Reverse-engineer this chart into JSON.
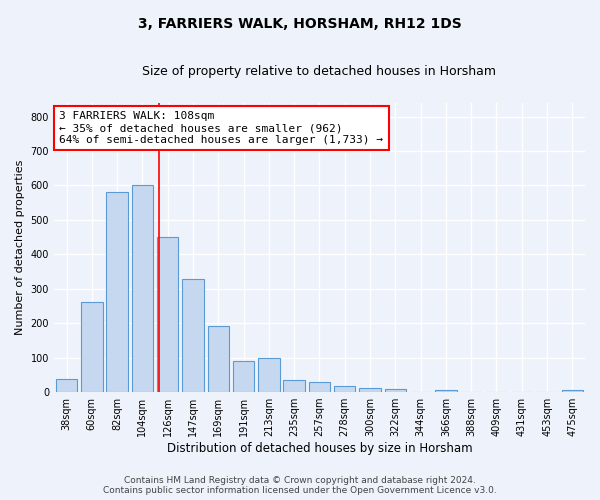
{
  "title": "3, FARRIERS WALK, HORSHAM, RH12 1DS",
  "subtitle": "Size of property relative to detached houses in Horsham",
  "xlabel": "Distribution of detached houses by size in Horsham",
  "ylabel": "Number of detached properties",
  "categories": [
    "38sqm",
    "60sqm",
    "82sqm",
    "104sqm",
    "126sqm",
    "147sqm",
    "169sqm",
    "191sqm",
    "213sqm",
    "235sqm",
    "257sqm",
    "278sqm",
    "300sqm",
    "322sqm",
    "344sqm",
    "366sqm",
    "388sqm",
    "409sqm",
    "431sqm",
    "453sqm",
    "475sqm"
  ],
  "values": [
    38,
    262,
    580,
    600,
    450,
    328,
    192,
    90,
    100,
    35,
    30,
    18,
    13,
    10,
    0,
    7,
    0,
    0,
    0,
    0,
    7
  ],
  "bar_color": "#c5d8f0",
  "bar_edge_color": "#5b9bd5",
  "property_line_x": 3.65,
  "property_label": "3 FARRIERS WALK: 108sqm",
  "annotation_line1": "← 35% of detached houses are smaller (962)",
  "annotation_line2": "64% of semi-detached houses are larger (1,733) →",
  "annotation_box_color": "white",
  "annotation_box_edge_color": "red",
  "vline_color": "red",
  "ylim": [
    0,
    840
  ],
  "yticks": [
    0,
    100,
    200,
    300,
    400,
    500,
    600,
    700,
    800
  ],
  "footer_line1": "Contains HM Land Registry data © Crown copyright and database right 2024.",
  "footer_line2": "Contains public sector information licensed under the Open Government Licence v3.0.",
  "background_color": "#eef2fa",
  "grid_color": "#ffffff",
  "title_fontsize": 10,
  "subtitle_fontsize": 9,
  "tick_fontsize": 7,
  "ylabel_fontsize": 8,
  "xlabel_fontsize": 8.5,
  "footer_fontsize": 6.5,
  "annotation_fontsize": 8
}
